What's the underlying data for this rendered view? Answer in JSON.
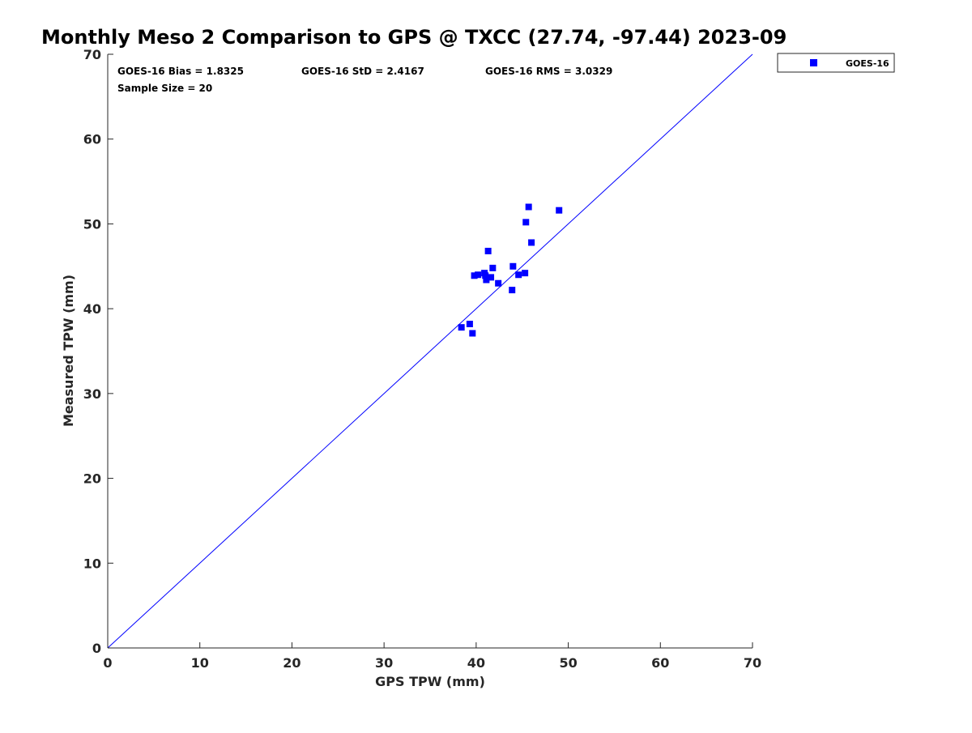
{
  "chart_data": {
    "type": "scatter",
    "title": "Monthly Meso 2 Comparison to GPS @ TXCC (27.74, -97.44) 2023-09",
    "xlabel": "GPS TPW (mm)",
    "ylabel": "Measured TPW (mm)",
    "xlim": [
      0,
      70
    ],
    "ylim": [
      0,
      70
    ],
    "xticks": [
      0,
      10,
      20,
      30,
      40,
      50,
      60,
      70
    ],
    "yticks": [
      0,
      10,
      20,
      30,
      40,
      50,
      60,
      70
    ],
    "grid": false,
    "legend_position": "top-right (outside plot)",
    "reference_line": {
      "name": "1:1 line",
      "x": [
        0,
        70
      ],
      "y": [
        0,
        70
      ],
      "color": "#0000ff"
    },
    "series": [
      {
        "name": "GOES-16",
        "marker": "square",
        "color": "#0000ff",
        "points": [
          [
            38.4,
            37.8
          ],
          [
            39.3,
            38.2
          ],
          [
            39.6,
            37.1
          ],
          [
            39.8,
            43.9
          ],
          [
            40.2,
            44.0
          ],
          [
            40.9,
            44.2
          ],
          [
            41.1,
            43.4
          ],
          [
            41.3,
            46.8
          ],
          [
            41.6,
            43.7
          ],
          [
            41.8,
            44.8
          ],
          [
            42.4,
            43.0
          ],
          [
            43.9,
            42.2
          ],
          [
            44.0,
            45.0
          ],
          [
            44.6,
            44.0
          ],
          [
            45.3,
            44.2
          ],
          [
            45.4,
            50.2
          ],
          [
            45.7,
            52.0
          ],
          [
            46.0,
            47.8
          ],
          [
            49.0,
            51.6
          ],
          [
            41.0,
            43.9
          ]
        ]
      }
    ],
    "annotations": {
      "bias": "GOES-16 Bias = 1.8325",
      "std": "GOES-16 StD = 2.4167",
      "rms": "GOES-16 RMS = 3.0329",
      "sample_size": "Sample Size = 20"
    }
  }
}
